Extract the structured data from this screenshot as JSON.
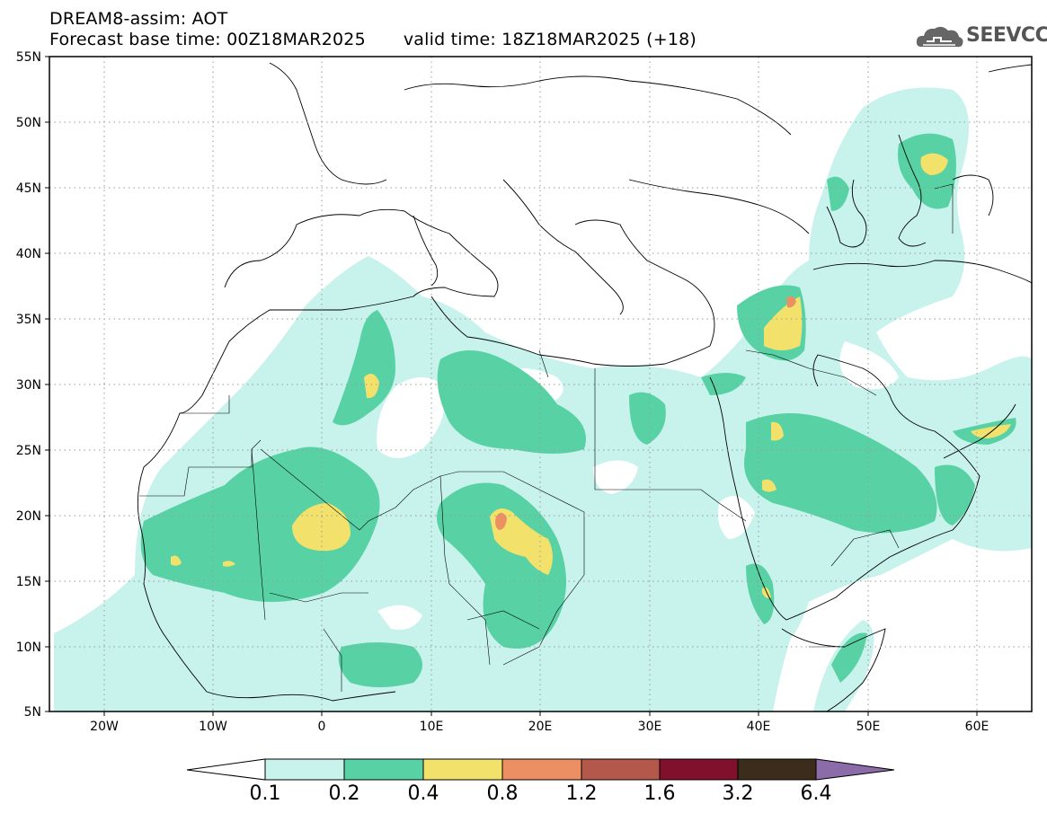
{
  "header": {
    "title": "DREAM8-assim: AOT",
    "base_time": "Forecast base time: 00Z18MAR2025",
    "valid_time": "valid time: 18Z18MAR2025 (+18)"
  },
  "logo": {
    "text": "SEEVCCC",
    "icon": "cloud-logo-icon"
  },
  "map": {
    "lat_labels": [
      "55N",
      "50N",
      "45N",
      "40N",
      "35N",
      "30N",
      "25N",
      "20N",
      "15N",
      "10N",
      "5N"
    ],
    "lon_labels": [
      "20W",
      "10W",
      "0",
      "10E",
      "20E",
      "30E",
      "40E",
      "50E",
      "60E"
    ],
    "grid": true
  },
  "colorbar": {
    "labels": [
      "0.1",
      "0.2",
      "0.4",
      "0.8",
      "1.2",
      "1.6",
      "3.2",
      "6.4"
    ],
    "colors": {
      "below": "#ffffff",
      "c1": "#c8f2ec",
      "c2": "#58d2a4",
      "c3": "#f2e26c",
      "c4": "#ec9064",
      "c5": "#b4584c",
      "c6": "#80102c",
      "c7": "#3c2c1c",
      "above": "#8c6ca8"
    }
  }
}
